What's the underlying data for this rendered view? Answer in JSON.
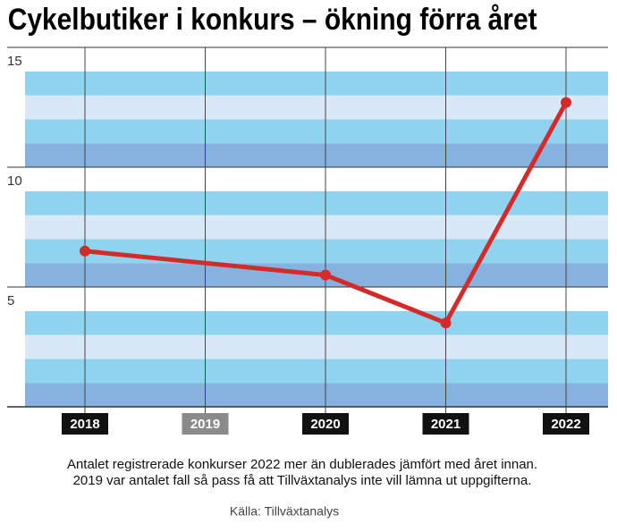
{
  "chart_data": {
    "type": "line",
    "title": "Cykelbutiker i konkurs – ökning förra året",
    "categories": [
      "2018",
      "2019",
      "2020",
      "2021",
      "2022"
    ],
    "series": [
      {
        "color": "#d42a2a",
        "values": [
          6.5,
          null,
          5.5,
          3.5,
          12.7
        ]
      }
    ],
    "ylim": [
      0,
      15
    ],
    "yticks": [
      5,
      10,
      15
    ],
    "notes": [
      "Antalet registrerade konkurser 2022 mer än dublerades jämfört med året innan.",
      "2019 var antalet fall så pass få att Tillväxtanalys inte vill lämna ut uppgifterna."
    ],
    "source": "Källa: Tillväxtanalys"
  }
}
